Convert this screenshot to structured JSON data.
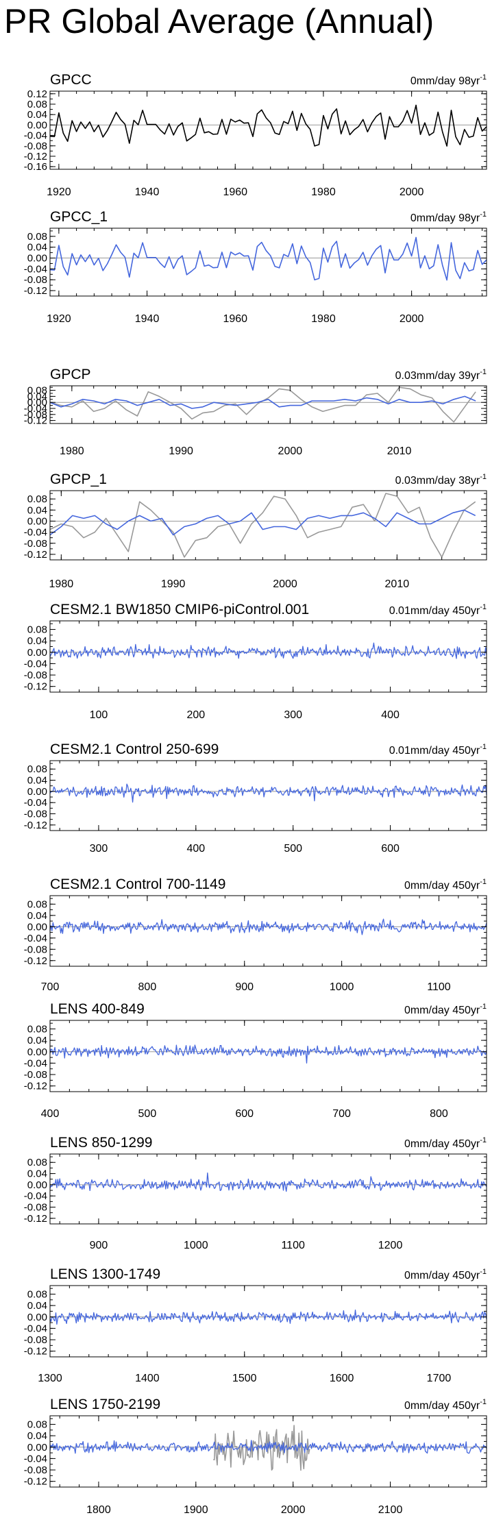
{
  "title": "PR Global Average (Annual)",
  "colors": {
    "obs": "#000000",
    "model": "#4466dd",
    "overlay": "#999999",
    "zero": "#999999"
  },
  "chart_data": [
    {
      "type": "line",
      "title": "GPCC",
      "trend": "0mm/day 98yr-1",
      "trend_value": "0mm/day 98yr",
      "trend_exp": "-1",
      "xlim": [
        1918,
        2017
      ],
      "ylim": [
        -0.17,
        0.13
      ],
      "xticks": [
        1920,
        1940,
        1960,
        1980,
        2000
      ],
      "yticks": [
        0.12,
        0.08,
        0.04,
        0.0,
        -0.04,
        -0.08,
        -0.12,
        -0.16
      ],
      "ytick_labels": [
        "0.12",
        "0.08",
        "0.04",
        "0.00",
        "-0.04",
        "-0.08",
        "-0.12",
        "-0.16"
      ],
      "series": [
        {
          "color": "#000000",
          "seed": 11,
          "gen": "obs",
          "x0": 1918,
          "x1": 2017,
          "amp": 0.055
        }
      ]
    },
    {
      "type": "line",
      "title": "GPCC_1",
      "trend": "0mm/day 98yr-1",
      "trend_value": "0mm/day 98yr",
      "trend_exp": "-1",
      "xlim": [
        1918,
        2017
      ],
      "ylim": [
        -0.14,
        0.11
      ],
      "xticks": [
        1920,
        1940,
        1960,
        1980,
        2000
      ],
      "yticks": [
        0.08,
        0.04,
        0.0,
        -0.04,
        -0.08,
        -0.12
      ],
      "ytick_labels": [
        "0.08",
        "0.04",
        "0.00",
        "-0.04",
        "-0.08",
        "-0.12"
      ],
      "series": [
        {
          "color": "#4466dd",
          "seed": 11,
          "gen": "obs",
          "x0": 1918,
          "x1": 2017,
          "amp": 0.055
        }
      ]
    },
    {
      "type": "line",
      "title": "GPCP",
      "trend": "0.03mm/day 39yr-1",
      "trend_value": "0.03mm/day 39yr",
      "trend_exp": "-1",
      "xlim": [
        1978,
        2018
      ],
      "ylim": [
        -0.14,
        0.11
      ],
      "xticks": [
        1980,
        1990,
        2000,
        2010
      ],
      "yticks": [
        0.08,
        0.04,
        0.0,
        -0.04,
        -0.08,
        -0.12
      ],
      "ytick_labels": [
        "0.08",
        "0.04",
        "0.00",
        "-0.04",
        "-0.08",
        "-0.12"
      ],
      "series": [
        {
          "color": "#999999",
          "x": [
            1978,
            1979,
            1980,
            1981,
            1982,
            1983,
            1984,
            1985,
            1986,
            1987,
            1988,
            1989,
            1990,
            1991,
            1992,
            1993,
            1994,
            1995,
            1996,
            1997,
            1998,
            1999,
            2000,
            2001,
            2002,
            2003,
            2004,
            2005,
            2006,
            2007,
            2008,
            2009,
            2010,
            2011,
            2012,
            2013,
            2014,
            2015,
            2016,
            2017
          ],
          "values": [
            0.0,
            -0.02,
            -0.03,
            0.01,
            -0.06,
            -0.04,
            0.01,
            -0.05,
            -0.09,
            0.07,
            0.04,
            0.0,
            -0.04,
            -0.11,
            -0.07,
            -0.06,
            -0.02,
            -0.01,
            -0.08,
            -0.01,
            0.03,
            0.09,
            0.08,
            0.02,
            -0.03,
            -0.06,
            -0.04,
            -0.02,
            -0.02,
            0.05,
            0.06,
            0.0,
            0.1,
            0.09,
            0.05,
            0.03,
            -0.06,
            -0.13,
            -0.03,
            0.07
          ]
        },
        {
          "color": "#4466dd",
          "x": [
            1978,
            1979,
            1980,
            1981,
            1982,
            1983,
            1984,
            1985,
            1986,
            1987,
            1988,
            1989,
            1990,
            1991,
            1992,
            1993,
            1994,
            1995,
            1996,
            1997,
            1998,
            1999,
            2000,
            2001,
            2002,
            2003,
            2004,
            2005,
            2006,
            2007,
            2008,
            2009,
            2010,
            2011,
            2012,
            2013,
            2014,
            2015,
            2016,
            2017
          ],
          "values": [
            0.0,
            -0.03,
            -0.01,
            0.02,
            0.01,
            -0.01,
            0.02,
            0.01,
            -0.02,
            0.0,
            0.02,
            -0.02,
            -0.01,
            -0.04,
            -0.03,
            0.0,
            -0.01,
            -0.02,
            -0.01,
            0.0,
            0.02,
            -0.03,
            -0.02,
            -0.02,
            0.01,
            0.01,
            0.01,
            0.02,
            0.01,
            0.03,
            0.02,
            -0.01,
            0.02,
            0.0,
            0.0,
            0.01,
            -0.01,
            0.02,
            0.04,
            0.01
          ]
        }
      ]
    },
    {
      "type": "line",
      "title": "GPCP_1",
      "trend": "0.03mm/day 38yr-1",
      "trend_value": "0.03mm/day 38yr",
      "trend_exp": "-1",
      "xlim": [
        1979,
        2018
      ],
      "ylim": [
        -0.14,
        0.11
      ],
      "xticks": [
        1980,
        1990,
        2000,
        2010
      ],
      "yticks": [
        0.08,
        0.04,
        0.0,
        -0.04,
        -0.08,
        -0.12
      ],
      "ytick_labels": [
        "0.08",
        "0.04",
        "0.00",
        "-0.04",
        "-0.08",
        "-0.12"
      ],
      "series": [
        {
          "color": "#999999",
          "x": [
            1979,
            1980,
            1981,
            1982,
            1983,
            1984,
            1985,
            1986,
            1987,
            1988,
            1989,
            1990,
            1991,
            1992,
            1993,
            1994,
            1995,
            1996,
            1997,
            1998,
            1999,
            2000,
            2001,
            2002,
            2003,
            2004,
            2005,
            2006,
            2007,
            2008,
            2009,
            2010,
            2011,
            2012,
            2013,
            2014,
            2015,
            2016,
            2017
          ],
          "values": [
            -0.03,
            -0.01,
            -0.02,
            -0.06,
            -0.04,
            0.01,
            -0.05,
            -0.11,
            0.07,
            0.04,
            0.0,
            -0.04,
            -0.13,
            -0.07,
            -0.06,
            -0.02,
            -0.01,
            -0.08,
            -0.01,
            0.03,
            0.09,
            0.08,
            0.02,
            -0.06,
            -0.04,
            -0.03,
            -0.02,
            0.05,
            0.06,
            0.0,
            0.1,
            0.09,
            0.03,
            0.05,
            -0.06,
            -0.13,
            -0.04,
            0.04,
            0.07
          ]
        },
        {
          "color": "#4466dd",
          "x": [
            1979,
            1980,
            1981,
            1982,
            1983,
            1984,
            1985,
            1986,
            1987,
            1988,
            1989,
            1990,
            1991,
            1992,
            1993,
            1994,
            1995,
            1996,
            1997,
            1998,
            1999,
            2000,
            2001,
            2002,
            2003,
            2004,
            2005,
            2006,
            2007,
            2008,
            2009,
            2010,
            2011,
            2012,
            2013,
            2014,
            2015,
            2016,
            2017
          ],
          "values": [
            -0.05,
            -0.02,
            0.02,
            0.01,
            0.02,
            -0.01,
            -0.03,
            0.0,
            0.02,
            0.0,
            0.01,
            -0.05,
            -0.02,
            -0.01,
            0.01,
            0.02,
            -0.01,
            0.0,
            0.03,
            -0.03,
            -0.02,
            -0.02,
            -0.03,
            0.01,
            0.02,
            0.01,
            0.02,
            0.02,
            0.03,
            0.01,
            -0.02,
            0.03,
            0.01,
            -0.01,
            -0.01,
            0.01,
            0.03,
            0.04,
            0.02
          ]
        }
      ]
    },
    {
      "type": "line",
      "title": "CESM2.1 BW1850 CMIP6-piControl.001",
      "trend": "0.01mm/day 450yr-1",
      "trend_value": "0.01mm/day 450yr",
      "trend_exp": "-1",
      "xlim": [
        50,
        499
      ],
      "ylim": [
        -0.14,
        0.11
      ],
      "xticks": [
        100,
        200,
        300,
        400
      ],
      "yticks": [
        0.08,
        0.04,
        0.0,
        -0.04,
        -0.08,
        -0.12
      ],
      "ytick_labels": [
        "0.08",
        "0.04",
        "0.00",
        "-0.04",
        "-0.08",
        "-0.12"
      ],
      "series": [
        {
          "color": "#4466dd",
          "seed": 21,
          "gen": "noise",
          "x0": 50,
          "x1": 499,
          "amp": 0.012,
          "bias": 0.0
        }
      ]
    },
    {
      "type": "line",
      "title": "CESM2.1 Control 250-699",
      "trend": "0.01mm/day 450yr-1",
      "trend_value": "0.01mm/day 450yr",
      "trend_exp": "-1",
      "xlim": [
        250,
        699
      ],
      "ylim": [
        -0.14,
        0.11
      ],
      "xticks": [
        300,
        400,
        500,
        600
      ],
      "yticks": [
        0.08,
        0.04,
        0.0,
        -0.04,
        -0.08,
        -0.12
      ],
      "ytick_labels": [
        "0.08",
        "0.04",
        "0.00",
        "-0.04",
        "-0.08",
        "-0.12"
      ],
      "series": [
        {
          "color": "#4466dd",
          "seed": 32,
          "gen": "noise",
          "x0": 250,
          "x1": 699,
          "amp": 0.012,
          "bias": 0.0
        }
      ]
    },
    {
      "type": "line",
      "title": "CESM2.1 Control 700-1149",
      "trend": "0mm/day 450yr-1",
      "trend_value": "0mm/day 450yr",
      "trend_exp": "-1",
      "xlim": [
        700,
        1149
      ],
      "ylim": [
        -0.14,
        0.11
      ],
      "xticks": [
        700,
        800,
        900,
        1000,
        1100
      ],
      "yticks": [
        0.08,
        0.04,
        0.0,
        -0.04,
        -0.08,
        -0.12
      ],
      "ytick_labels": [
        "0.08",
        "0.04",
        "0.00",
        "-0.04",
        "-0.08",
        "-0.12"
      ],
      "series": [
        {
          "color": "#4466dd",
          "seed": 43,
          "gen": "noise",
          "x0": 700,
          "x1": 1149,
          "amp": 0.012,
          "bias": 0.0
        }
      ]
    },
    {
      "type": "line",
      "title": "LENS 400-849",
      "trend": "0mm/day 450yr-1",
      "trend_value": "0mm/day 450yr",
      "trend_exp": "-1",
      "xlim": [
        400,
        849
      ],
      "ylim": [
        -0.14,
        0.11
      ],
      "xticks": [
        400,
        500,
        600,
        700,
        800
      ],
      "yticks": [
        0.08,
        0.04,
        0.0,
        -0.04,
        -0.08,
        -0.12
      ],
      "ytick_labels": [
        "0.08",
        "0.04",
        "0.00",
        "-0.04",
        "-0.08",
        "-0.12"
      ],
      "series": [
        {
          "color": "#4466dd",
          "seed": 54,
          "gen": "noise",
          "x0": 400,
          "x1": 849,
          "amp": 0.011,
          "bias": 0.0
        }
      ]
    },
    {
      "type": "line",
      "title": "LENS 850-1299",
      "trend": "0mm/day 450yr-1",
      "trend_value": "0mm/day 450yr",
      "trend_exp": "-1",
      "xlim": [
        850,
        1299
      ],
      "ylim": [
        -0.14,
        0.11
      ],
      "xticks": [
        900,
        1000,
        1100,
        1200
      ],
      "yticks": [
        0.08,
        0.04,
        0.0,
        -0.04,
        -0.08,
        -0.12
      ],
      "ytick_labels": [
        "0.08",
        "0.04",
        "0.00",
        "-0.04",
        "-0.08",
        "-0.12"
      ],
      "series": [
        {
          "color": "#4466dd",
          "seed": 65,
          "gen": "noise",
          "x0": 850,
          "x1": 1299,
          "amp": 0.011,
          "bias": 0.0
        }
      ]
    },
    {
      "type": "line",
      "title": "LENS 1300-1749",
      "trend": "0mm/day 450yr-1",
      "trend_value": "0mm/day 450yr",
      "trend_exp": "-1",
      "xlim": [
        1300,
        1749
      ],
      "ylim": [
        -0.14,
        0.11
      ],
      "xticks": [
        1300,
        1400,
        1500,
        1600,
        1700
      ],
      "yticks": [
        0.08,
        0.04,
        0.0,
        -0.04,
        -0.08,
        -0.12
      ],
      "ytick_labels": [
        "0.08",
        "0.04",
        "0.00",
        "-0.04",
        "-0.08",
        "-0.12"
      ],
      "series": [
        {
          "color": "#4466dd",
          "seed": 76,
          "gen": "noise",
          "x0": 1300,
          "x1": 1749,
          "amp": 0.011,
          "bias": 0.0
        }
      ]
    },
    {
      "type": "line",
      "title": "LENS 1750-2199",
      "trend": "0mm/day 450yr-1",
      "trend_value": "0mm/day 450yr",
      "trend_exp": "-1",
      "xlim": [
        1750,
        2199
      ],
      "ylim": [
        -0.14,
        0.11
      ],
      "xticks": [
        1800,
        1900,
        2000,
        2100
      ],
      "yticks": [
        0.08,
        0.04,
        0.0,
        -0.04,
        -0.08,
        -0.12
      ],
      "ytick_labels": [
        "0.08",
        "0.04",
        "0.00",
        "-0.04",
        "-0.08",
        "-0.12"
      ],
      "series": [
        {
          "color": "#999999",
          "seed": 11,
          "gen": "obs",
          "x0": 1918,
          "x1": 2017,
          "amp": 0.055
        },
        {
          "color": "#4466dd",
          "seed": 87,
          "gen": "noise",
          "x0": 1750,
          "x1": 2199,
          "amp": 0.011,
          "bias": 0.0
        }
      ]
    }
  ]
}
